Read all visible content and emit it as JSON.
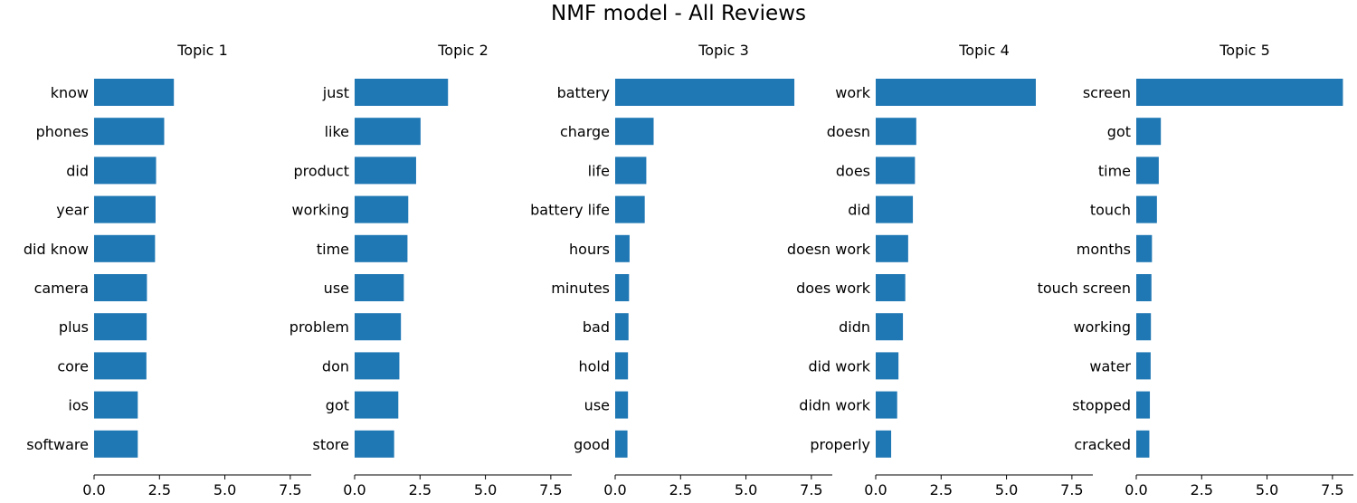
{
  "title": "NMF model - All Reviews",
  "chart_data": [
    {
      "type": "bar",
      "orientation": "horizontal",
      "title": "Topic 1",
      "categories": [
        "know",
        "phones",
        "did",
        "year",
        "did know",
        "camera",
        "plus",
        "core",
        "ios",
        "software"
      ],
      "values": [
        3.05,
        2.68,
        2.37,
        2.35,
        2.33,
        2.02,
        2.01,
        2.0,
        1.67,
        1.67
      ],
      "xlim": [
        0,
        8.3
      ],
      "xticks": [
        "0.0",
        "2.5",
        "5.0",
        "7.5"
      ]
    },
    {
      "type": "bar",
      "orientation": "horizontal",
      "title": "Topic 2",
      "categories": [
        "just",
        "like",
        "product",
        "working",
        "time",
        "use",
        "problem",
        "don",
        "got",
        "store"
      ],
      "values": [
        3.57,
        2.52,
        2.35,
        2.05,
        2.02,
        1.88,
        1.77,
        1.71,
        1.67,
        1.51
      ],
      "xlim": [
        0,
        8.3
      ],
      "xticks": [
        "0.0",
        "2.5",
        "5.0",
        "7.5"
      ]
    },
    {
      "type": "bar",
      "orientation": "horizontal",
      "title": "Topic 3",
      "categories": [
        "battery",
        "charge",
        "life",
        "battery life",
        "hours",
        "minutes",
        "bad",
        "hold",
        "use",
        "good"
      ],
      "values": [
        6.85,
        1.47,
        1.19,
        1.13,
        0.55,
        0.53,
        0.51,
        0.49,
        0.49,
        0.47
      ],
      "xlim": [
        0,
        8.3
      ],
      "xticks": [
        "0.0",
        "2.5",
        "5.0",
        "7.5"
      ]
    },
    {
      "type": "bar",
      "orientation": "horizontal",
      "title": "Topic 4",
      "categories": [
        "work",
        "doesn",
        "does",
        "did",
        "doesn work",
        "does work",
        "didn",
        "did work",
        "didn work",
        "properly"
      ],
      "values": [
        6.12,
        1.55,
        1.5,
        1.42,
        1.24,
        1.13,
        1.04,
        0.87,
        0.82,
        0.59
      ],
      "xlim": [
        0,
        8.3
      ],
      "xticks": [
        "0.0",
        "2.5",
        "5.0",
        "7.5"
      ]
    },
    {
      "type": "bar",
      "orientation": "horizontal",
      "title": "Topic 5",
      "categories": [
        "screen",
        "got",
        "time",
        "touch",
        "months",
        "touch screen",
        "working",
        "water",
        "stopped",
        "cracked"
      ],
      "values": [
        7.9,
        0.94,
        0.86,
        0.79,
        0.6,
        0.58,
        0.56,
        0.55,
        0.52,
        0.5
      ],
      "xlim": [
        0,
        8.3
      ],
      "xticks": [
        "0.0",
        "2.5",
        "5.0",
        "7.5"
      ]
    }
  ],
  "colors": {
    "bar": "#1f77b4",
    "axis": "#000000",
    "text": "#000000"
  }
}
